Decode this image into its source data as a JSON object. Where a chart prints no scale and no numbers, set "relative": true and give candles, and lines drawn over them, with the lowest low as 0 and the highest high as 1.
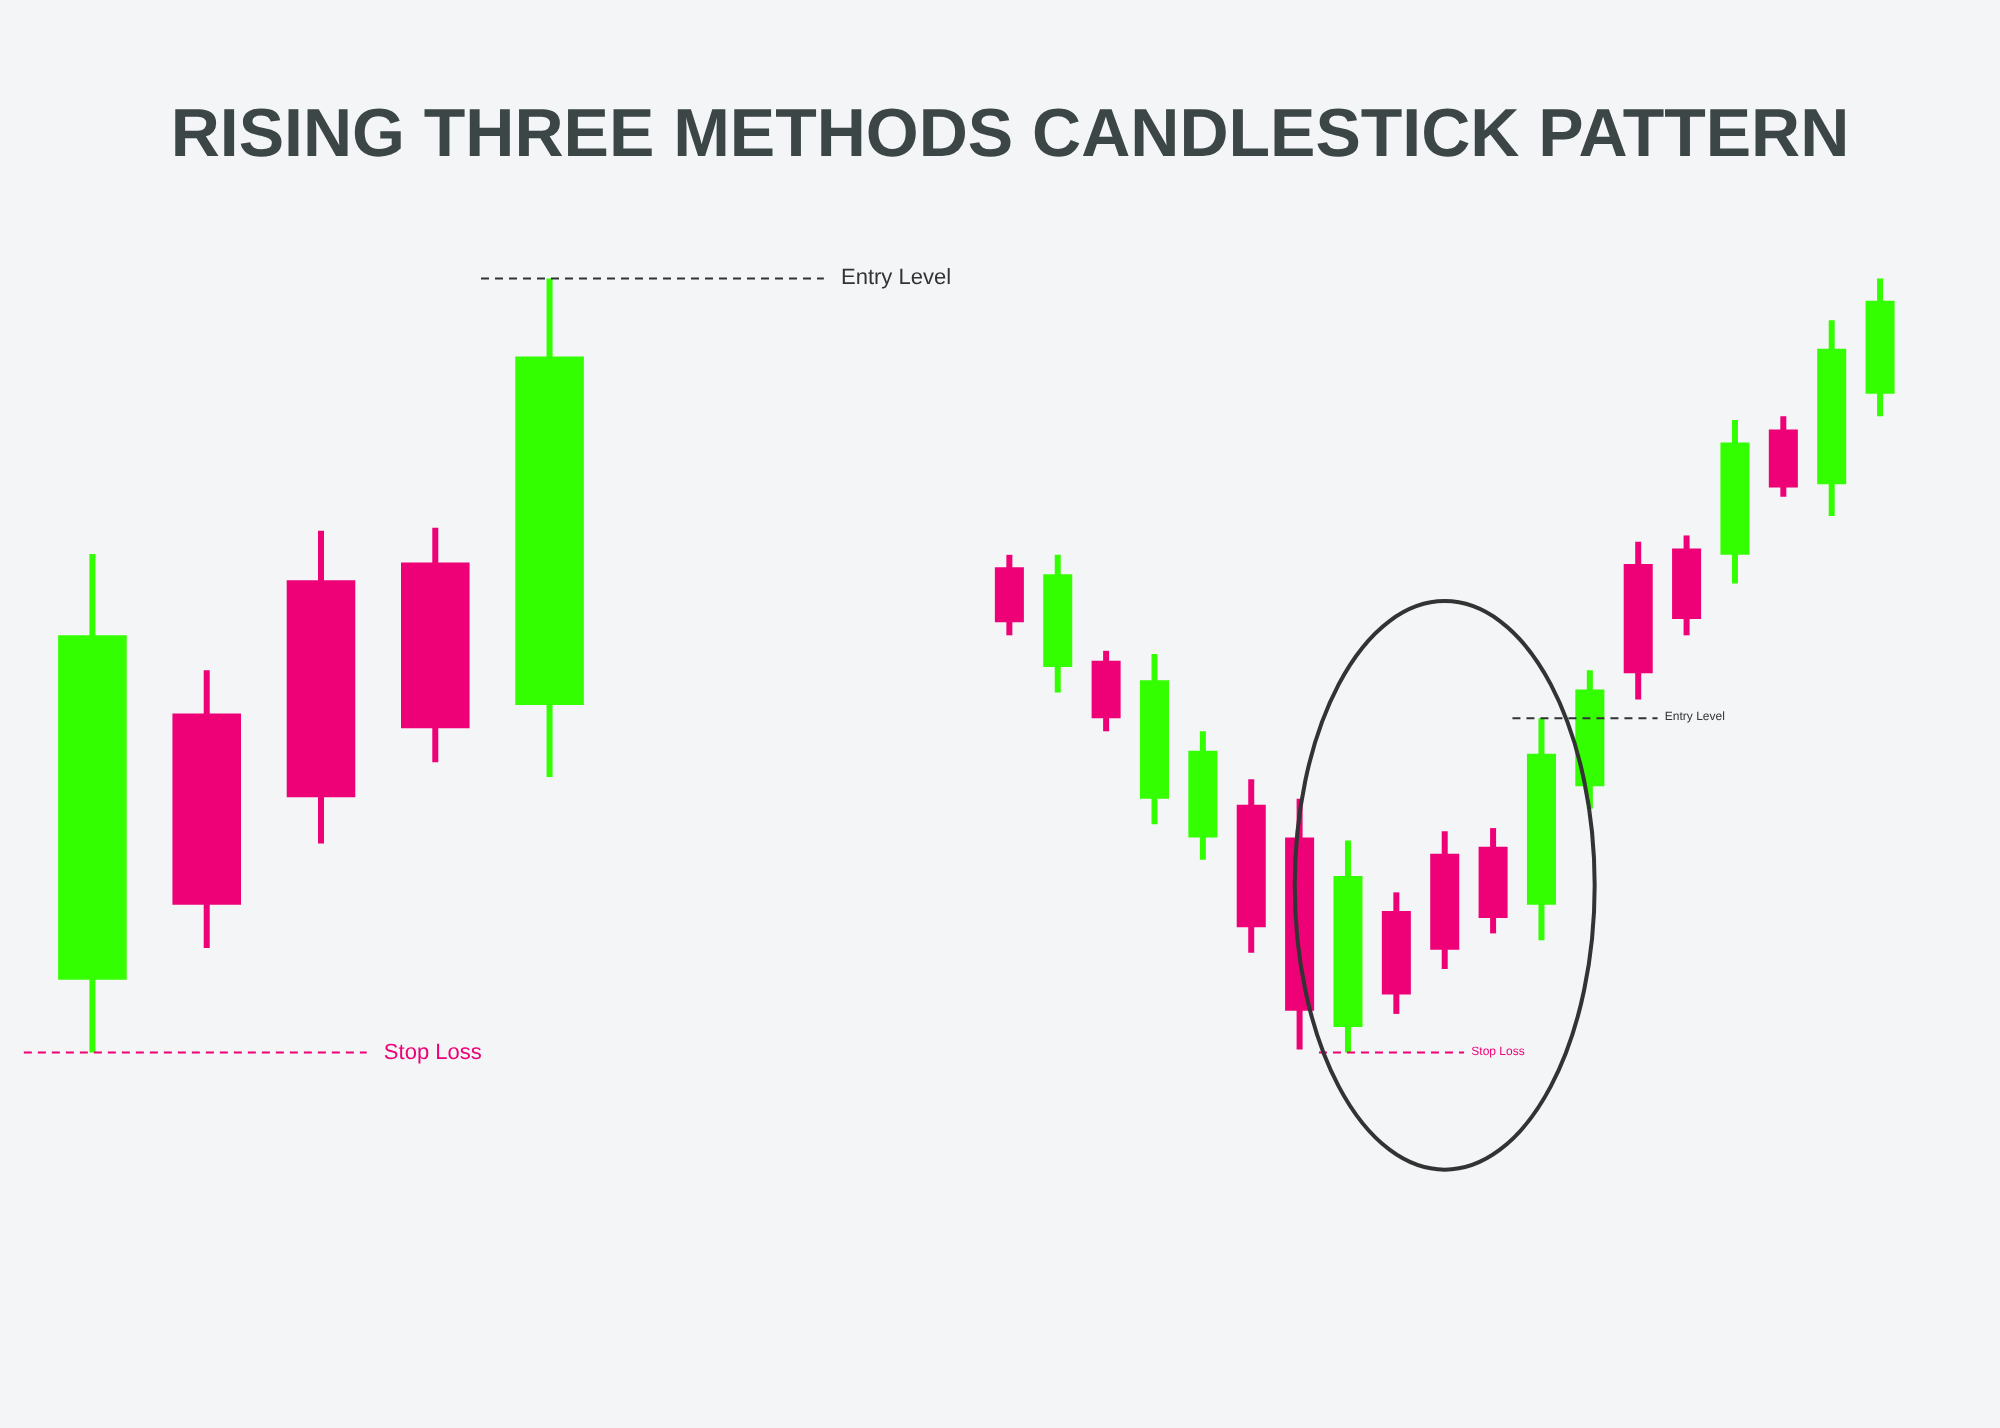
{
  "chart_data": [
    {
      "type": "candlestick",
      "title": "RISING THREE METHODS CANDLESTICK PATTERN",
      "relative": true,
      "categories": [
        null,
        null,
        null,
        null,
        null
      ],
      "ohlc": [
        [
          0.094,
          0.644,
          0,
          0.539
        ],
        [
          0.438,
          0.494,
          0.135,
          0.191
        ],
        [
          0.61,
          0.674,
          0.27,
          0.33
        ],
        [
          0.633,
          0.678,
          0.375,
          0.419
        ],
        [
          0.449,
          1,
          0.356,
          0.899
        ]
      ],
      "colors": [
        "#33ff00",
        "#ee0077",
        "#ee0077",
        "#ee0077",
        "#33ff00"
      ],
      "ref_lines": [
        {
          "axis": "y",
          "value": 1,
          "label": "Entry Level",
          "color": "#333333",
          "line_style": "dashed"
        },
        {
          "axis": "y",
          "value": 0,
          "label": "Stop Loss",
          "color": "#ee0077",
          "line_style": "dashed"
        }
      ]
    },
    {
      "type": "candlestick",
      "relative": true,
      "categories": [
        null,
        null,
        null,
        null,
        null,
        null,
        null,
        null,
        null,
        null,
        null,
        null,
        null,
        null,
        null,
        null,
        null,
        null,
        null
      ],
      "ohlc": [
        [
          0.627,
          0.643,
          0.539,
          0.556
        ],
        [
          0.498,
          0.643,
          0.465,
          0.618
        ],
        [
          0.506,
          0.519,
          0.415,
          0.432
        ],
        [
          0.328,
          0.515,
          0.295,
          0.481
        ],
        [
          0.278,
          0.415,
          0.249,
          0.39
        ],
        [
          0.32,
          0.353,
          0.129,
          0.162
        ],
        [
          0.278,
          0.328,
          0.004,
          0.054
        ],
        [
          0.033,
          0.274,
          0,
          0.228
        ],
        [
          0.183,
          0.207,
          0.05,
          0.075
        ],
        [
          0.257,
          0.286,
          0.108,
          0.133
        ],
        [
          0.266,
          0.29,
          0.154,
          0.174
        ],
        [
          0.191,
          0.432,
          0.145,
          0.386
        ],
        [
          0.344,
          0.494,
          0.315,
          0.469
        ],
        [
          0.631,
          0.66,
          0.456,
          0.49
        ],
        [
          0.651,
          0.668,
          0.539,
          0.56
        ],
        [
          0.643,
          0.817,
          0.606,
          0.788
        ],
        [
          0.805,
          0.822,
          0.718,
          0.73
        ],
        [
          0.734,
          0.946,
          0.693,
          0.909
        ],
        [
          0.851,
          1,
          0.822,
          0.971
        ]
      ],
      "colors": [
        "#ee0077",
        "#33ff00",
        "#ee0077",
        "#33ff00",
        "#33ff00",
        "#ee0077",
        "#ee0077",
        "#33ff00",
        "#ee0077",
        "#ee0077",
        "#ee0077",
        "#33ff00",
        "#33ff00",
        "#ee0077",
        "#ee0077",
        "#33ff00",
        "#ee0077",
        "#33ff00",
        "#33ff00"
      ],
      "ref_lines": [
        {
          "axis": "y",
          "value": 0.432,
          "label": "Entry Level",
          "color": "#333333",
          "line_style": "dashed"
        },
        {
          "axis": "y",
          "value": 0,
          "label": "Stop Loss",
          "color": "#ee0077",
          "line_style": "dashed"
        }
      ]
    }
  ]
}
